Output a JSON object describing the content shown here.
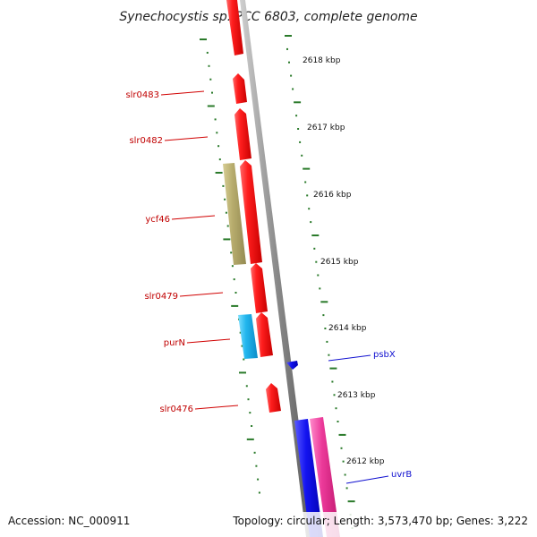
{
  "title": "Synechocystis sp. PCC 6803, complete genome",
  "footer": {
    "accession": "Accession: NC_000911",
    "topology": "Topology: circular; Length: 3,573,470 bp; Genes: 3,222"
  },
  "tick_labels": [
    "2618 kbp",
    "2617 kbp",
    "2616 kbp",
    "2615 kbp",
    "2614 kbp",
    "2613 kbp",
    "2612 kbp"
  ],
  "genes": [
    {
      "name": "slr0483",
      "color": "#e02020"
    },
    {
      "name": "slr0482",
      "color": "#e02020"
    },
    {
      "name": "ycf46",
      "color": "#e02020"
    },
    {
      "name": "slr0479",
      "color": "#e02020"
    },
    {
      "name": "purN",
      "color": "#e02020"
    },
    {
      "name": "slr0476",
      "color": "#e02020"
    },
    {
      "name": "psbX",
      "color": "#1010d0"
    },
    {
      "name": "uvrB",
      "color": "#1010d0"
    }
  ],
  "colors": {
    "forward_gene": "#e01818",
    "reverse_gene": "#1515e0",
    "cog_khaki": "#b8ad6e",
    "cog_cyan": "#2bb8ee",
    "cog_pink": "#ec3a9a",
    "tick": "#2a7a2a",
    "backbone": "#888888"
  }
}
